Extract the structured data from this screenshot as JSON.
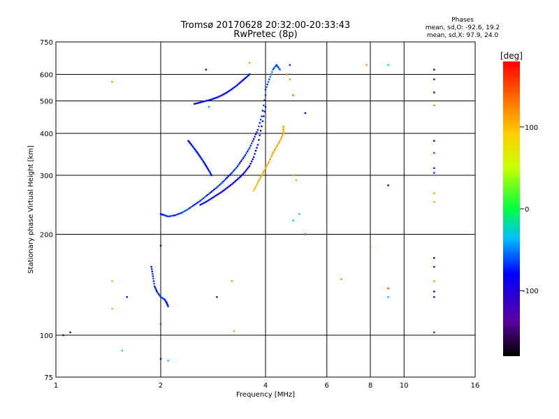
{
  "chart_data": {
    "type": "scatter",
    "title": "Tromsø 20170628 20:32:00-20:33:43",
    "subtitle": "RwPretec (8p)",
    "xlabel": "Frequency [MHz]",
    "ylabel": "Stationary phase Virtual Height [km]",
    "x_scale": "log",
    "y_scale": "log",
    "xlim": [
      1,
      16
    ],
    "ylim": [
      75,
      750
    ],
    "x_ticks": [
      1,
      2,
      4,
      6,
      8,
      10,
      16
    ],
    "y_ticks": [
      75,
      100,
      200,
      300,
      400,
      500,
      600,
      750
    ],
    "grid": true,
    "stats": {
      "heading": "Phases",
      "line_o": "mean, sd,O: -92.6, 19.2",
      "line_x": "mean, sd,X:  97.9, 24.0"
    },
    "colorbar": {
      "label": "[deg]",
      "ticks": [
        100,
        0,
        -100
      ],
      "range": [
        -180,
        180
      ]
    },
    "traces": [
      {
        "f": [
          2.0,
          2.05,
          2.1,
          2.2,
          2.3,
          2.4,
          2.5,
          2.6,
          2.7,
          2.8,
          2.9,
          3.0,
          3.1,
          3.2,
          3.3,
          3.4,
          3.5,
          3.6,
          3.7,
          3.8,
          3.9,
          4.0
        ],
        "h": [
          230,
          228,
          226,
          228,
          232,
          238,
          245,
          252,
          260,
          268,
          276,
          285,
          295,
          305,
          316,
          330,
          345,
          362,
          385,
          410,
          450,
          520
        ],
        "phase": -90
      },
      {
        "f": [
          2.6,
          2.7,
          2.8,
          2.9,
          3.0,
          3.1,
          3.2,
          3.3,
          3.4,
          3.5,
          3.6,
          3.7,
          3.8,
          3.9,
          4.0
        ],
        "h": [
          245,
          250,
          256,
          262,
          268,
          275,
          282,
          290,
          298,
          308,
          320,
          340,
          370,
          420,
          480
        ],
        "phase": -105
      },
      {
        "f": [
          2.5,
          2.6,
          2.7,
          2.8,
          2.9,
          3.0,
          3.1,
          3.2,
          3.3,
          3.4,
          3.5,
          3.6
        ],
        "h": [
          490,
          495,
          500,
          505,
          512,
          520,
          530,
          542,
          555,
          570,
          585,
          600
        ],
        "phase": -100
      },
      {
        "f": [
          2.4,
          2.45,
          2.5,
          2.55,
          2.6,
          2.65,
          2.7,
          2.75,
          2.8
        ],
        "h": [
          380,
          370,
          360,
          350,
          340,
          330,
          320,
          310,
          300
        ],
        "phase": -95
      },
      {
        "f": [
          3.7,
          3.8,
          3.9,
          4.0,
          4.1,
          4.2,
          4.3,
          4.4,
          4.5,
          4.5
        ],
        "h": [
          270,
          285,
          300,
          315,
          330,
          350,
          365,
          380,
          400,
          420
        ],
        "phase": 110
      },
      {
        "f": [
          1.88,
          1.9,
          1.92,
          1.95,
          2.0,
          2.05,
          2.08,
          2.1
        ],
        "h": [
          160,
          150,
          140,
          135,
          130,
          128,
          125,
          122
        ],
        "phase": -90
      },
      {
        "f": [
          4.0,
          4.1,
          4.2,
          4.3,
          4.4
        ],
        "h": [
          540,
          580,
          620,
          640,
          620
        ],
        "phase": -80
      }
    ],
    "scatter": [
      {
        "f": 1.45,
        "h": 570,
        "phase": 120
      },
      {
        "f": 1.05,
        "h": 100,
        "phase": -100
      },
      {
        "f": 1.1,
        "h": 102,
        "phase": -110
      },
      {
        "f": 1.45,
        "h": 145,
        "phase": 115
      },
      {
        "f": 1.45,
        "h": 120,
        "phase": 110
      },
      {
        "f": 1.6,
        "h": 130,
        "phase": -110
      },
      {
        "f": 1.55,
        "h": 90,
        "phase": -20
      },
      {
        "f": 2.0,
        "h": 85,
        "phase": -110
      },
      {
        "f": 2.1,
        "h": 84,
        "phase": -60
      },
      {
        "f": 2.0,
        "h": 108,
        "phase": -80
      },
      {
        "f": 2.0,
        "h": 185,
        "phase": -100
      },
      {
        "f": 2.9,
        "h": 130,
        "phase": -110
      },
      {
        "f": 3.2,
        "h": 145,
        "phase": 120
      },
      {
        "f": 3.25,
        "h": 103,
        "phase": 110
      },
      {
        "f": 5.2,
        "h": 200,
        "phase": 160
      },
      {
        "f": 5.2,
        "h": 460,
        "phase": -100
      },
      {
        "f": 5.0,
        "h": 230,
        "phase": -30
      },
      {
        "f": 4.8,
        "h": 220,
        "phase": -60
      },
      {
        "f": 6.6,
        "h": 147,
        "phase": 130
      },
      {
        "f": 7.8,
        "h": 640,
        "phase": 120
      },
      {
        "f": 8.0,
        "h": 183,
        "phase": 140
      },
      {
        "f": 9.0,
        "h": 138,
        "phase": 150
      },
      {
        "f": 9.0,
        "h": 130,
        "phase": -60
      },
      {
        "f": 9.0,
        "h": 280,
        "phase": -100
      },
      {
        "f": 9.0,
        "h": 640,
        "phase": -10
      },
      {
        "f": 12.2,
        "h": 620,
        "phase": -100
      },
      {
        "f": 12.2,
        "h": 580,
        "phase": -110
      },
      {
        "f": 12.2,
        "h": 530,
        "phase": -100
      },
      {
        "f": 12.2,
        "h": 485,
        "phase": 130
      },
      {
        "f": 12.2,
        "h": 380,
        "phase": -100
      },
      {
        "f": 12.2,
        "h": 350,
        "phase": -80
      },
      {
        "f": 12.2,
        "h": 315,
        "phase": -95
      },
      {
        "f": 12.2,
        "h": 305,
        "phase": -90
      },
      {
        "f": 12.2,
        "h": 265,
        "phase": 110
      },
      {
        "f": 12.2,
        "h": 250,
        "phase": 115
      },
      {
        "f": 12.2,
        "h": 170,
        "phase": -160
      },
      {
        "f": 12.2,
        "h": 160,
        "phase": -110
      },
      {
        "f": 12.2,
        "h": 145,
        "phase": 120
      },
      {
        "f": 12.2,
        "h": 135,
        "phase": -100
      },
      {
        "f": 12.2,
        "h": 130,
        "phase": -110
      },
      {
        "f": 12.2,
        "h": 102,
        "phase": -90
      },
      {
        "f": 4.6,
        "h": 600,
        "phase": 130
      },
      {
        "f": 4.7,
        "h": 580,
        "phase": 120
      },
      {
        "f": 4.8,
        "h": 520,
        "phase": 140
      },
      {
        "f": 4.7,
        "h": 640,
        "phase": -120
      },
      {
        "f": 3.6,
        "h": 650,
        "phase": 115
      },
      {
        "f": 2.7,
        "h": 620,
        "phase": -110
      },
      {
        "f": 2.75,
        "h": 480,
        "phase": -70
      },
      {
        "f": 4.9,
        "h": 290,
        "phase": 110
      },
      {
        "f": 4.8,
        "h": 300,
        "phase": 115
      }
    ]
  }
}
